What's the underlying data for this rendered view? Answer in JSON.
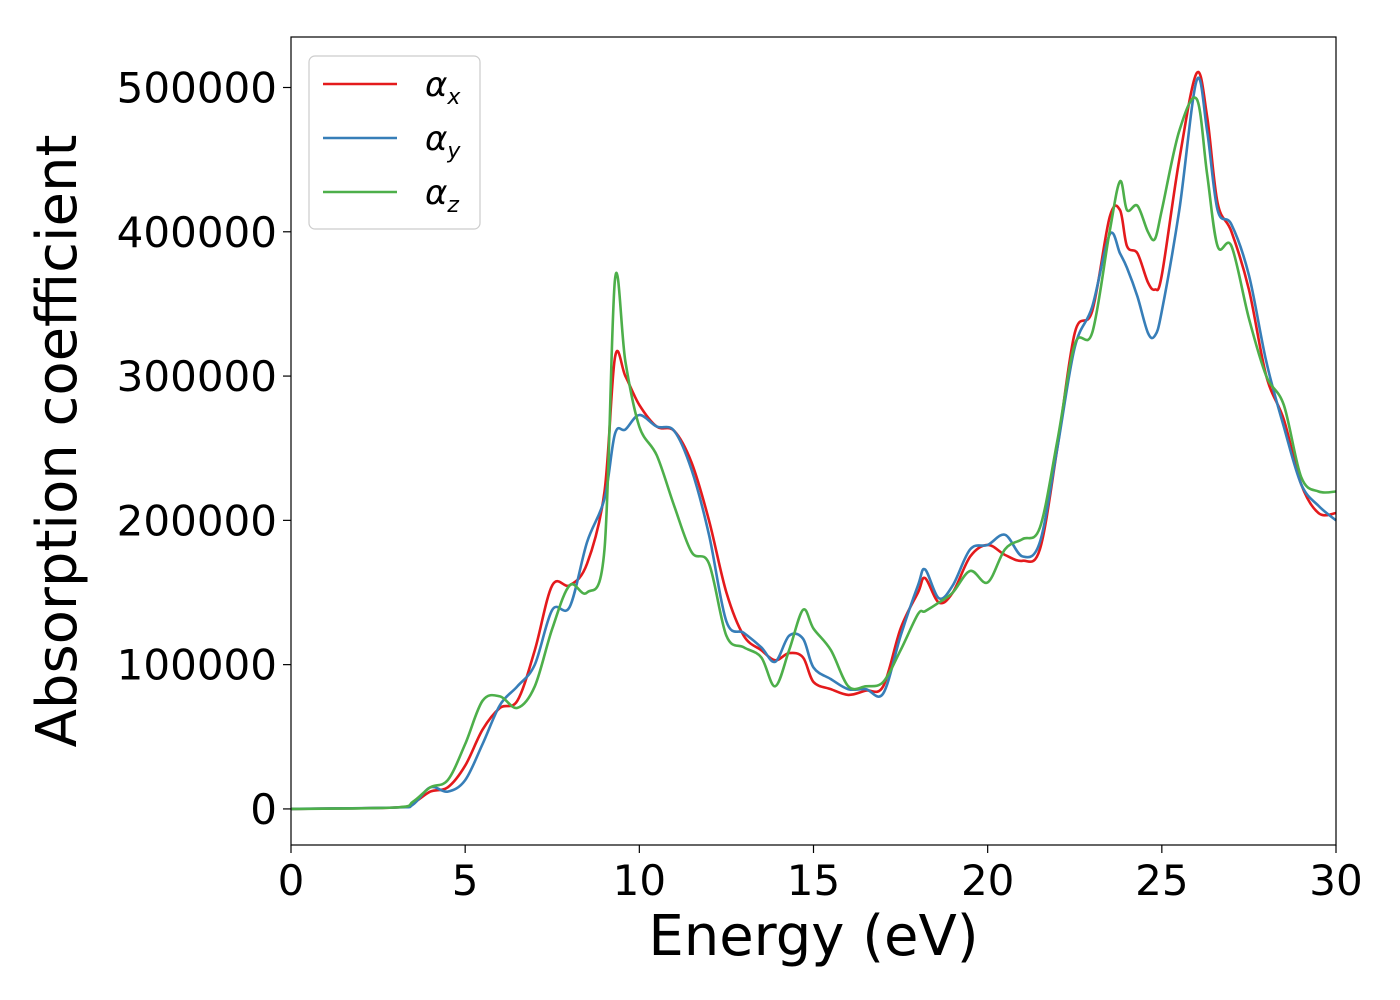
{
  "chart_data": {
    "type": "line",
    "title": "",
    "xlabel": "Energy (eV)",
    "ylabel": "Absorption coefficient",
    "xlim": [
      0,
      30
    ],
    "ylim": [
      -25000,
      535000
    ],
    "xticks": [
      0,
      5,
      10,
      15,
      20,
      25,
      30
    ],
    "xtick_labels": [
      "0",
      "5",
      "10",
      "15",
      "20",
      "25",
      "30"
    ],
    "yticks": [
      0,
      100000,
      200000,
      300000,
      400000,
      500000
    ],
    "ytick_labels": [
      "0",
      "100000",
      "200000",
      "300000",
      "400000",
      "500000"
    ],
    "grid": false,
    "legend_position": "top-left",
    "series": [
      {
        "name": "α_x",
        "legend_base": "α",
        "legend_sub": "x",
        "color": "#e41a1c",
        "x": [
          0,
          3,
          3.5,
          4,
          4.5,
          5,
          5.5,
          6,
          6.5,
          7,
          7.5,
          8,
          8.5,
          9,
          9.3,
          9.6,
          10,
          10.5,
          11,
          11.5,
          12,
          12.5,
          13,
          13.5,
          13.9,
          14.3,
          14.7,
          15,
          15.5,
          16,
          16.5,
          17,
          17.5,
          18,
          18.2,
          18.6,
          19,
          19.5,
          20,
          20.5,
          21,
          21.5,
          22,
          22.5,
          23,
          23.5,
          23.8,
          24,
          24.3,
          24.6,
          24.8,
          25,
          25.5,
          26,
          26.3,
          26.6,
          27,
          27.5,
          28,
          28.5,
          29,
          29.5,
          30
        ],
        "y": [
          0,
          1000,
          4000,
          12000,
          15000,
          30000,
          55000,
          70000,
          75000,
          110000,
          155000,
          155000,
          170000,
          220000,
          313000,
          300000,
          280000,
          265000,
          262000,
          240000,
          200000,
          150000,
          120000,
          110000,
          103000,
          108000,
          105000,
          88000,
          83000,
          79000,
          82000,
          85000,
          125000,
          150000,
          160000,
          143000,
          150000,
          175000,
          183000,
          176000,
          172000,
          180000,
          250000,
          330000,
          345000,
          410000,
          415000,
          390000,
          385000,
          365000,
          360000,
          370000,
          450000,
          510000,
          480000,
          420000,
          400000,
          360000,
          300000,
          270000,
          225000,
          205000,
          205000
        ]
      },
      {
        "name": "α_y",
        "legend_base": "α",
        "legend_sub": "y",
        "color": "#377eb8",
        "x": [
          0,
          3,
          3.5,
          4,
          4.5,
          5,
          5.5,
          6,
          6.5,
          7,
          7.5,
          8,
          8.5,
          9,
          9.3,
          9.6,
          10,
          10.5,
          11,
          11.5,
          12,
          12.5,
          13,
          13.5,
          13.9,
          14.3,
          14.7,
          15,
          15.5,
          16,
          16.5,
          17,
          17.5,
          18,
          18.2,
          18.6,
          19,
          19.5,
          20,
          20.5,
          21,
          21.5,
          22,
          22.5,
          23,
          23.5,
          23.8,
          24,
          24.3,
          24.6,
          24.8,
          25,
          25.5,
          26,
          26.3,
          26.6,
          27,
          27.5,
          28,
          28.5,
          29,
          29.5,
          30
        ],
        "y": [
          0,
          1000,
          3000,
          15000,
          12000,
          20000,
          45000,
          72000,
          85000,
          100000,
          138000,
          140000,
          185000,
          215000,
          260000,
          263000,
          273000,
          265000,
          262000,
          235000,
          190000,
          130000,
          122000,
          112000,
          102000,
          120000,
          118000,
          98000,
          90000,
          83000,
          83000,
          80000,
          120000,
          155000,
          166000,
          146000,
          155000,
          180000,
          183000,
          190000,
          175000,
          185000,
          250000,
          320000,
          348000,
          398000,
          385000,
          375000,
          355000,
          330000,
          328000,
          345000,
          415000,
          505000,
          470000,
          415000,
          405000,
          370000,
          310000,
          265000,
          225000,
          210000,
          200000
        ]
      },
      {
        "name": "α_z",
        "legend_base": "α",
        "legend_sub": "z",
        "color": "#4daf4a",
        "x": [
          0,
          3,
          3.5,
          4,
          4.5,
          5,
          5.5,
          6,
          6.5,
          7,
          7.5,
          8,
          8.5,
          9,
          9.3,
          9.6,
          10,
          10.5,
          11,
          11.5,
          12,
          12.5,
          13,
          13.5,
          13.9,
          14.3,
          14.7,
          15,
          15.5,
          16,
          16.5,
          17,
          17.5,
          18,
          18.2,
          18.6,
          19,
          19.5,
          20,
          20.5,
          21,
          21.5,
          22,
          22.5,
          23,
          23.5,
          23.8,
          24,
          24.3,
          24.6,
          24.8,
          25,
          25.5,
          26,
          26.3,
          26.6,
          27,
          27.5,
          28,
          28.5,
          29,
          29.5,
          30
        ],
        "y": [
          0,
          1000,
          5000,
          15000,
          20000,
          45000,
          75000,
          78000,
          70000,
          85000,
          125000,
          155000,
          150000,
          180000,
          367000,
          310000,
          265000,
          245000,
          210000,
          178000,
          170000,
          120000,
          112000,
          105000,
          85000,
          110000,
          138000,
          125000,
          110000,
          85000,
          85000,
          88000,
          110000,
          135000,
          137000,
          143000,
          150000,
          165000,
          157000,
          180000,
          187000,
          195000,
          255000,
          322000,
          330000,
          400000,
          435000,
          415000,
          418000,
          400000,
          395000,
          415000,
          470000,
          492000,
          440000,
          390000,
          390000,
          340000,
          300000,
          280000,
          230000,
          220000,
          220000
        ]
      }
    ]
  }
}
